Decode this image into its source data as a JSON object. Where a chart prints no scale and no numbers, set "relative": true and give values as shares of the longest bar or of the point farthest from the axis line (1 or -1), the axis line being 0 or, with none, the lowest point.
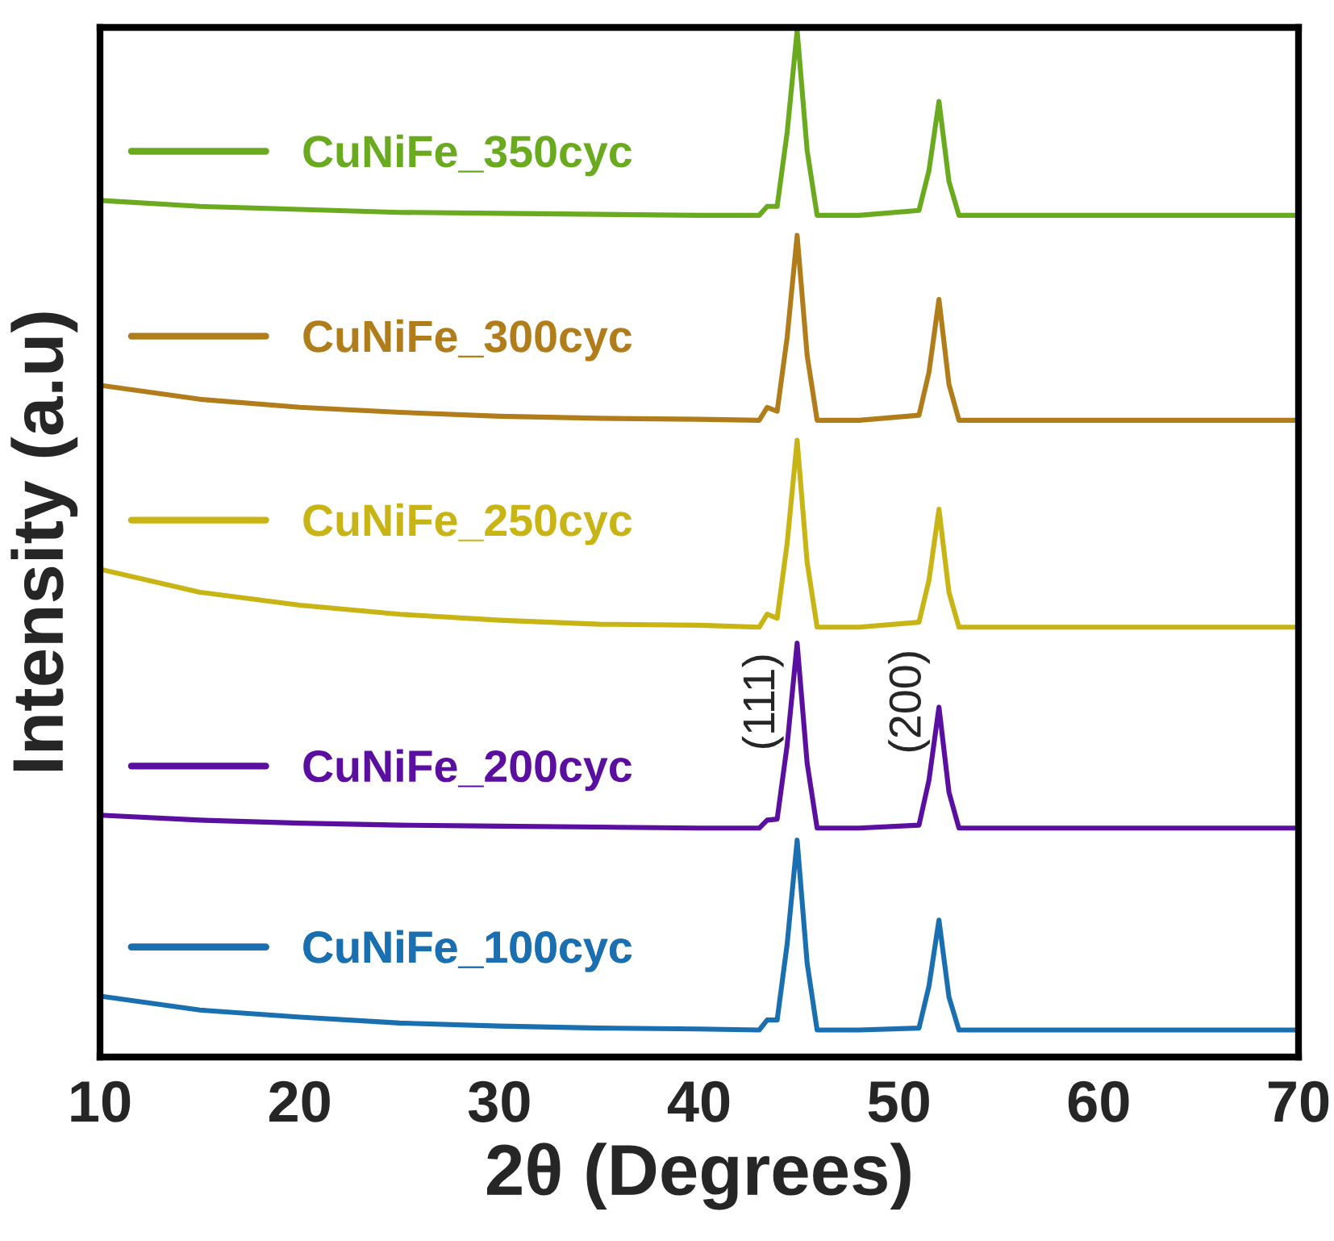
{
  "chart_data": {
    "type": "line",
    "relative": true,
    "xlabel": "2θ (Degrees)",
    "ylabel": "Intensity (a.u)",
    "xlim": [
      10,
      70
    ],
    "xticks": [
      10,
      20,
      30,
      40,
      50,
      60,
      70
    ],
    "tick_labels": "x",
    "grid": false,
    "legend": "left",
    "x": [
      10,
      15,
      20,
      25,
      30,
      35,
      40,
      43.0,
      43.4,
      43.9,
      44.4,
      44.9,
      45.4,
      45.9,
      48,
      51.0,
      51.5,
      52.0,
      52.5,
      53.0,
      56,
      60,
      65,
      70
    ],
    "series": [
      {
        "name": "CuNiFe_350cyc",
        "color": "#6aaa1e",
        "values": [
          0.83,
          0.824,
          0.821,
          0.818,
          0.817,
          0.816,
          0.815,
          0.815,
          0.824,
          0.824,
          0.898,
          1.0,
          0.88,
          0.815,
          0.815,
          0.82,
          0.86,
          0.929,
          0.849,
          0.815,
          0.815,
          0.815,
          0.815,
          0.815
        ]
      },
      {
        "name": "CuNiFe_300cyc",
        "color": "#b07d1a",
        "values": [
          0.645,
          0.631,
          0.623,
          0.618,
          0.614,
          0.612,
          0.611,
          0.61,
          0.623,
          0.619,
          0.693,
          0.795,
          0.675,
          0.61,
          0.61,
          0.615,
          0.658,
          0.731,
          0.646,
          0.61,
          0.61,
          0.61,
          0.61,
          0.61
        ]
      },
      {
        "name": "CuNiFe_250cyc",
        "color": "#c8b414",
        "values": [
          0.461,
          0.438,
          0.425,
          0.416,
          0.41,
          0.406,
          0.405,
          0.403,
          0.416,
          0.412,
          0.487,
          0.59,
          0.468,
          0.403,
          0.403,
          0.408,
          0.45,
          0.521,
          0.438,
          0.403,
          0.403,
          0.403,
          0.403,
          0.403
        ]
      },
      {
        "name": "CuNiFe_200cyc",
        "color": "#5a0fa0",
        "values": [
          0.215,
          0.21,
          0.207,
          0.205,
          0.204,
          0.203,
          0.202,
          0.202,
          0.21,
          0.211,
          0.285,
          0.387,
          0.267,
          0.202,
          0.202,
          0.205,
          0.25,
          0.323,
          0.238,
          0.202,
          0.202,
          0.202,
          0.202,
          0.202
        ]
      },
      {
        "name": "CuNiFe_100cyc",
        "color": "#1a6fb0",
        "values": [
          0.034,
          0.02,
          0.013,
          0.007,
          0.004,
          0.002,
          0.001,
          0.0,
          0.01,
          0.01,
          0.086,
          0.19,
          0.067,
          0.0,
          0.0,
          0.002,
          0.044,
          0.11,
          0.033,
          0.0,
          0.0,
          0.0,
          0.0,
          0.0
        ]
      }
    ],
    "annotations": [
      "(111)",
      "(200)"
    ]
  }
}
